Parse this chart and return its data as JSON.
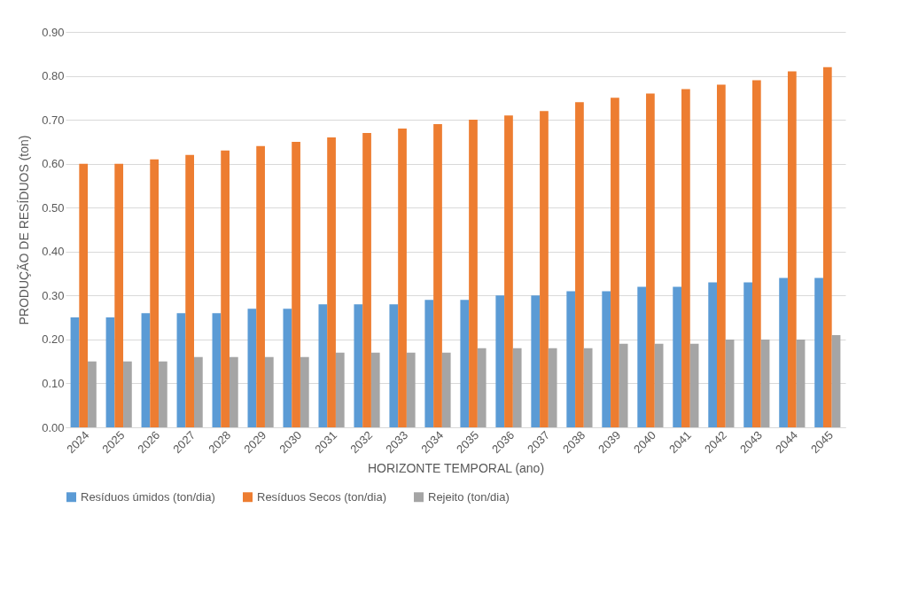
{
  "chart_data": {
    "type": "bar",
    "xlabel": "HORIZONTE TEMPORAL (ano)",
    "ylabel": "PRODUÇÃO DE RESÍDUOS (ton)",
    "categories": [
      "2024",
      "2025",
      "2026",
      "2027",
      "2028",
      "2029",
      "2030",
      "2031",
      "2032",
      "2033",
      "2034",
      "2035",
      "2036",
      "2037",
      "2038",
      "2039",
      "2040",
      "2041",
      "2042",
      "2043",
      "2044",
      "2045"
    ],
    "series": [
      {
        "name": "Resíduos úmidos (ton/dia)",
        "color": "#5b9bd5",
        "values": [
          0.25,
          0.25,
          0.26,
          0.26,
          0.26,
          0.27,
          0.27,
          0.28,
          0.28,
          0.28,
          0.29,
          0.29,
          0.3,
          0.3,
          0.31,
          0.31,
          0.32,
          0.32,
          0.33,
          0.33,
          0.34,
          0.34
        ]
      },
      {
        "name": "Resíduos Secos (ton/dia)",
        "color": "#ed7d31",
        "values": [
          0.6,
          0.6,
          0.61,
          0.62,
          0.63,
          0.64,
          0.65,
          0.66,
          0.67,
          0.68,
          0.69,
          0.7,
          0.71,
          0.72,
          0.74,
          0.75,
          0.76,
          0.77,
          0.78,
          0.79,
          0.81,
          0.82
        ]
      },
      {
        "name": "Rejeito (ton/dia)",
        "color": "#a5a5a5",
        "values": [
          0.15,
          0.15,
          0.15,
          0.16,
          0.16,
          0.16,
          0.16,
          0.17,
          0.17,
          0.17,
          0.17,
          0.18,
          0.18,
          0.18,
          0.18,
          0.19,
          0.19,
          0.19,
          0.2,
          0.2,
          0.2,
          0.21
        ]
      }
    ],
    "ylim": [
      0,
      0.9
    ],
    "yticks": [
      {
        "value": 0,
        "label": "0.00"
      },
      {
        "value": 0.1,
        "label": "0.10"
      },
      {
        "value": 0.2,
        "label": "0.20"
      },
      {
        "value": 0.3,
        "label": "0.30"
      },
      {
        "value": 0.4,
        "label": "0.40"
      },
      {
        "value": 0.5,
        "label": "0.50"
      },
      {
        "value": 0.6,
        "label": "0.60"
      },
      {
        "value": 0.7,
        "label": "0.70"
      },
      {
        "value": 0.8,
        "label": "0.80"
      },
      {
        "value": 0.9,
        "label": "0.90"
      }
    ],
    "grid": "y",
    "legend": "bottom"
  }
}
